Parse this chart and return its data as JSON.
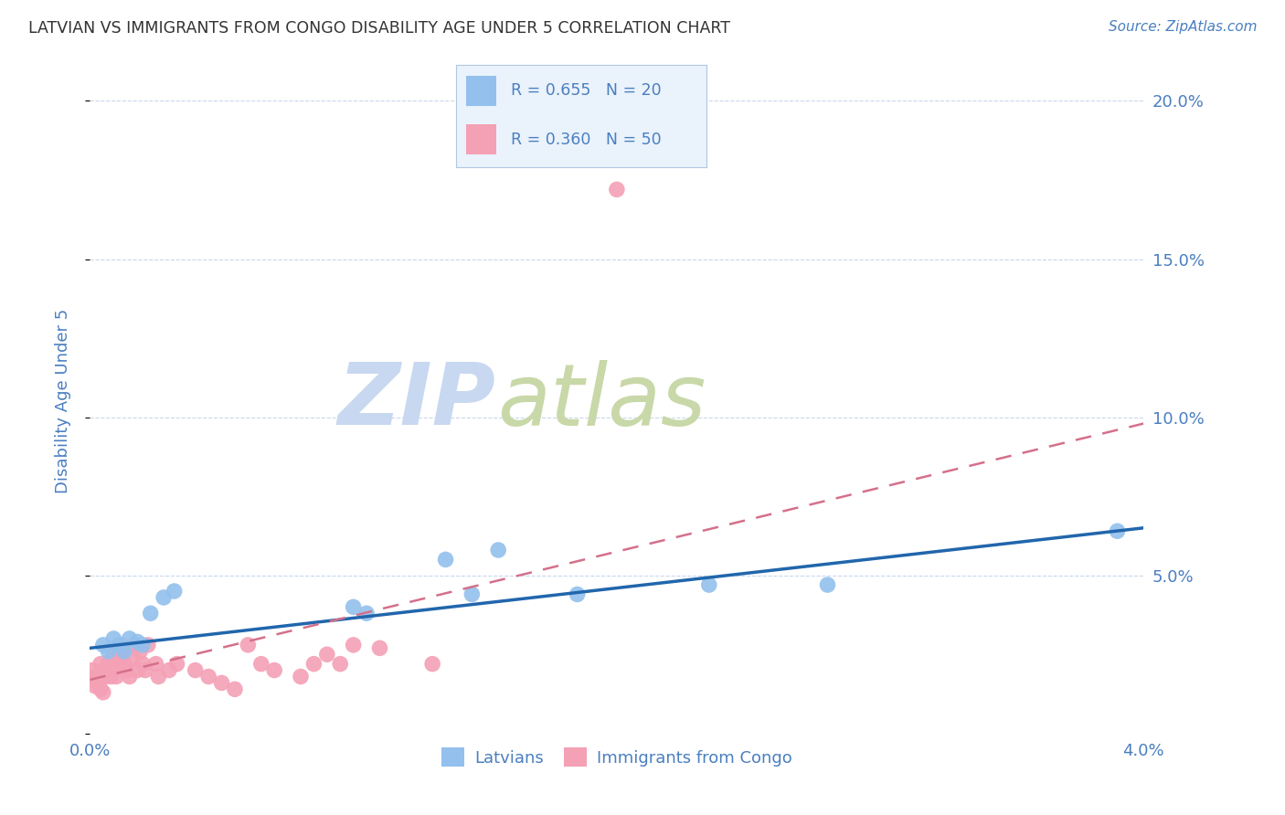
{
  "title": "LATVIAN VS IMMIGRANTS FROM CONGO DISABILITY AGE UNDER 5 CORRELATION CHART",
  "source": "Source: ZipAtlas.com",
  "ylabel": "Disability Age Under 5",
  "xlim": [
    0.0,
    0.04
  ],
  "ylim": [
    0.0,
    0.21
  ],
  "yticks": [
    0.0,
    0.05,
    0.1,
    0.15,
    0.2
  ],
  "ytick_labels": [
    "",
    "5.0%",
    "10.0%",
    "15.0%",
    "20.0%"
  ],
  "xticks": [
    0.0,
    0.01,
    0.02,
    0.03,
    0.04
  ],
  "xtick_labels": [
    "0.0%",
    "",
    "",
    "",
    "4.0%"
  ],
  "latvian_color": "#93C0ED",
  "congo_color": "#F4A0B5",
  "latvian_line_color": "#2166AC",
  "congo_line_color": "#D4708A",
  "watermark_zip_color": "#C8D8F0",
  "watermark_atlas_color": "#C8D8A8",
  "axis_color": "#4A7FC0",
  "grid_color": "#C8D8EC",
  "legend_bg_color": "#EAF2FB",
  "latvian_x": [
    0.0005,
    0.0007,
    0.0009,
    0.0011,
    0.0013,
    0.0015,
    0.0018,
    0.002,
    0.0023,
    0.0028,
    0.0032,
    0.01,
    0.0105,
    0.0135,
    0.0145,
    0.0155,
    0.0185,
    0.0235,
    0.028,
    0.039
  ],
  "latvian_y": [
    0.028,
    0.026,
    0.03,
    0.028,
    0.026,
    0.03,
    0.029,
    0.028,
    0.038,
    0.043,
    0.045,
    0.04,
    0.038,
    0.055,
    0.044,
    0.058,
    0.044,
    0.047,
    0.047,
    0.064
  ],
  "congo_x": [
    0.0001,
    0.0002,
    0.0002,
    0.0003,
    0.0004,
    0.0004,
    0.0005,
    0.0005,
    0.0006,
    0.0006,
    0.0007,
    0.0007,
    0.0008,
    0.0008,
    0.0009,
    0.0009,
    0.001,
    0.001,
    0.0011,
    0.0012,
    0.0012,
    0.0013,
    0.0014,
    0.0015,
    0.0016,
    0.0017,
    0.0018,
    0.0019,
    0.002,
    0.0021,
    0.0022,
    0.0025,
    0.0026,
    0.003,
    0.0033,
    0.004,
    0.0045,
    0.005,
    0.0055,
    0.006,
    0.0065,
    0.007,
    0.008,
    0.0085,
    0.009,
    0.0095,
    0.01,
    0.011,
    0.013,
    0.02
  ],
  "congo_y": [
    0.02,
    0.018,
    0.015,
    0.016,
    0.022,
    0.014,
    0.018,
    0.013,
    0.018,
    0.02,
    0.022,
    0.02,
    0.022,
    0.018,
    0.025,
    0.02,
    0.022,
    0.018,
    0.024,
    0.026,
    0.028,
    0.022,
    0.02,
    0.018,
    0.024,
    0.028,
    0.02,
    0.026,
    0.022,
    0.02,
    0.028,
    0.022,
    0.018,
    0.02,
    0.022,
    0.02,
    0.018,
    0.016,
    0.014,
    0.028,
    0.022,
    0.02,
    0.018,
    0.022,
    0.025,
    0.022,
    0.028,
    0.027,
    0.022,
    0.172
  ],
  "latvian_line_x": [
    0.0,
    0.04
  ],
  "latvian_line_y": [
    0.027,
    0.065
  ],
  "congo_line_x": [
    0.0,
    0.04
  ],
  "congo_line_y": [
    0.017,
    0.098
  ]
}
